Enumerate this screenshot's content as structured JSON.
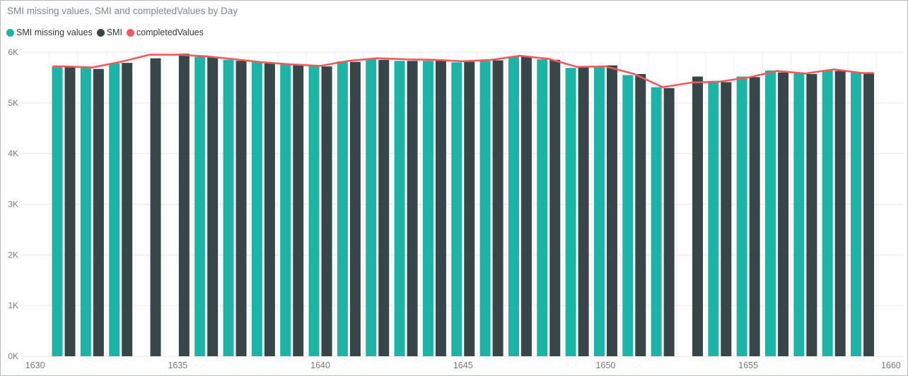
{
  "title": "SMI missing values, SMI and completedValues by Day",
  "chart_data": {
    "type": "bar",
    "subtype": "clustered-column-with-line",
    "title": "SMI missing values, SMI and completedValues by Day",
    "xlabel": "Day",
    "ylabel": "",
    "ylim": [
      0,
      6000
    ],
    "grid": true,
    "legend_position": "top-left",
    "x_tick_labels": [
      "1630",
      "1635",
      "1640",
      "1645",
      "1650",
      "1655",
      "1660"
    ],
    "x_tick_values": [
      1630,
      1635,
      1640,
      1645,
      1650,
      1655,
      1660
    ],
    "y_tick_labels": [
      "0K",
      "1K",
      "2K",
      "3K",
      "4K",
      "5K",
      "6K"
    ],
    "y_tick_values": [
      0,
      1000,
      2000,
      3000,
      4000,
      5000,
      6000
    ],
    "categories": [
      1631,
      1632,
      1633,
      1634,
      1635,
      1636,
      1637,
      1638,
      1639,
      1640,
      1641,
      1642,
      1643,
      1644,
      1645,
      1646,
      1647,
      1648,
      1649,
      1650,
      1651,
      1652,
      1653,
      1654,
      1655,
      1656,
      1657,
      1658,
      1659
    ],
    "series": [
      {
        "name": "SMI missing values",
        "type": "bar",
        "color": "#1cb4a7",
        "values": [
          5730,
          5690,
          5780,
          null,
          null,
          5910,
          5850,
          5800,
          5760,
          5730,
          5820,
          5870,
          5830,
          5830,
          5800,
          5830,
          5910,
          5860,
          5690,
          5710,
          5550,
          5310,
          null,
          5410,
          5520,
          5640,
          5580,
          5640,
          5600
        ]
      },
      {
        "name": "SMI",
        "type": "bar",
        "color": "#374649",
        "values": [
          5710,
          5670,
          5790,
          5880,
          5970,
          5900,
          5830,
          5780,
          5750,
          5720,
          5810,
          5850,
          5830,
          5840,
          5810,
          5840,
          5920,
          5850,
          5710,
          5740,
          5570,
          5290,
          5520,
          5410,
          5510,
          5600,
          5570,
          5630,
          5590
        ]
      },
      {
        "name": "completedValues",
        "type": "line",
        "color": "#f2595c",
        "values": [
          5720,
          5700,
          5810,
          5950,
          5950,
          5920,
          5860,
          5800,
          5760,
          5730,
          5830,
          5880,
          5860,
          5850,
          5820,
          5850,
          5930,
          5870,
          5710,
          5720,
          5570,
          5310,
          5400,
          5420,
          5500,
          5630,
          5580,
          5660,
          5590
        ]
      }
    ],
    "colors": {
      "title_text": "#7b868c",
      "axis_text": "#777777",
      "h_gridline": "#e6e6e6",
      "v_gridline": "#f0f0f0",
      "background": "#ffffff"
    }
  }
}
